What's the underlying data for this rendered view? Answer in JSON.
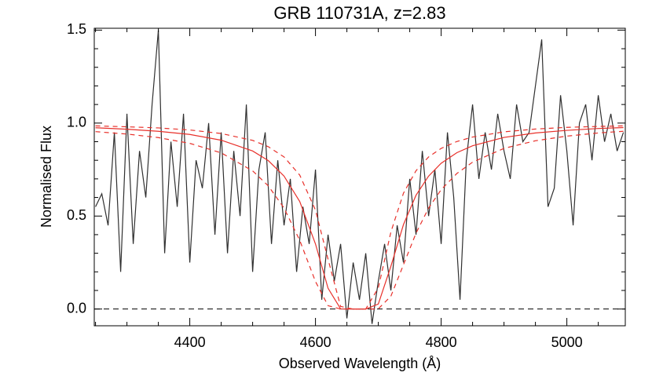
{
  "chart_data": {
    "type": "line",
    "title": "GRB 110731A, z=2.83",
    "x_label": "Observed Wavelength (Å)",
    "y_label": "Normalised Flux",
    "xlim": [
      4248,
      5093
    ],
    "ylim": [
      -0.09,
      1.51
    ],
    "xticks": [
      4400,
      4600,
      4800,
      5000
    ],
    "yticks": [
      {
        "value": 0,
        "label": "0.0"
      },
      {
        "value": 0.5,
        "label": "0.5"
      },
      {
        "value": 1,
        "label": "1.0"
      },
      {
        "value": 1.5,
        "label": "1.5"
      }
    ],
    "xticks_minor": [
      4250,
      4300,
      4350,
      4450,
      4500,
      4550,
      4650,
      4700,
      4750,
      4850,
      4900,
      4950,
      5050
    ],
    "yticks_minor": [
      0.1,
      0.2,
      0.3,
      0.4,
      0.6,
      0.7,
      0.8,
      0.9,
      1.1,
      1.2,
      1.3,
      1.4
    ],
    "reference_line": 0,
    "series": [
      {
        "color": "#303030",
        "style": "solid",
        "x": [
          4250,
          4260,
          4270,
          4280,
          4290,
          4300,
          4310,
          4320,
          4330,
          4340,
          4350,
          4360,
          4370,
          4380,
          4390,
          4400,
          4410,
          4420,
          4430,
          4440,
          4450,
          4460,
          4470,
          4480,
          4490,
          4500,
          4510,
          4520,
          4530,
          4540,
          4550,
          4560,
          4570,
          4580,
          4590,
          4600,
          4610,
          4620,
          4630,
          4640,
          4650,
          4660,
          4670,
          4680,
          4690,
          4700,
          4710,
          4720,
          4730,
          4740,
          4750,
          4760,
          4770,
          4780,
          4790,
          4800,
          4810,
          4820,
          4830,
          4840,
          4850,
          4860,
          4870,
          4880,
          4890,
          4900,
          4910,
          4920,
          4930,
          4940,
          4950,
          4960,
          4970,
          4980,
          4990,
          5000,
          5010,
          5020,
          5030,
          5040,
          5050,
          5060,
          5070,
          5080,
          5090
        ],
        "values": [
          0.55,
          0.62,
          0.45,
          0.95,
          0.2,
          1.05,
          0.35,
          0.85,
          0.6,
          1.1,
          1.5,
          0.3,
          0.9,
          0.55,
          1.05,
          0.25,
          0.8,
          0.65,
          1.0,
          0.4,
          0.95,
          0.3,
          0.85,
          0.5,
          1.1,
          0.2,
          0.75,
          0.95,
          0.35,
          0.8,
          0.45,
          0.7,
          0.2,
          0.55,
          0.35,
          0.75,
          0.05,
          0.4,
          0.15,
          0.35,
          -0.05,
          0.25,
          0.05,
          0.3,
          -0.08,
          0.15,
          0.35,
          0.1,
          0.45,
          0.25,
          0.7,
          0.4,
          0.85,
          0.5,
          0.75,
          0.35,
          0.95,
          0.6,
          0.05,
          0.8,
          1.1,
          0.7,
          0.95,
          0.75,
          1.05,
          0.85,
          0.7,
          1.1,
          0.9,
          0.95,
          1.2,
          1.45,
          0.55,
          0.65,
          1.15,
          0.85,
          0.45,
          1.0,
          1.1,
          0.8,
          1.15,
          0.9,
          1.05,
          0.85,
          0.95
        ]
      },
      {
        "color": "#e8302a",
        "style": "solid",
        "x": [
          4250,
          4300,
          4350,
          4400,
          4450,
          4500,
          4525,
          4550,
          4575,
          4600,
          4620,
          4640,
          4660,
          4680,
          4700,
          4720,
          4740,
          4760,
          4780,
          4800,
          4825,
          4850,
          4900,
          4950,
          5000,
          5050,
          5090
        ],
        "values": [
          0.975,
          0.967,
          0.956,
          0.939,
          0.908,
          0.85,
          0.798,
          0.715,
          0.578,
          0.35,
          0.112,
          0.001,
          0,
          0,
          0.027,
          0.23,
          0.454,
          0.612,
          0.715,
          0.784,
          0.841,
          0.878,
          0.923,
          0.947,
          0.961,
          0.971,
          0.976
        ]
      },
      {
        "color": "#e8302a",
        "style": "dashed",
        "x": [
          4250,
          4300,
          4350,
          4400,
          4450,
          4500,
          4525,
          4550,
          4575,
          4600,
          4620,
          4640,
          4660,
          4680,
          4700,
          4720,
          4740,
          4760,
          4780,
          4800,
          4825,
          4850,
          4900,
          4950,
          5000,
          5050,
          5090
        ],
        "values": [
          0.985,
          0.98,
          0.974,
          0.963,
          0.944,
          0.907,
          0.873,
          0.818,
          0.72,
          0.532,
          0.268,
          0.014,
          0,
          0,
          0.114,
          0.414,
          0.623,
          0.744,
          0.818,
          0.864,
          0.901,
          0.925,
          0.953,
          0.968,
          0.977,
          0.982,
          0.985
        ]
      },
      {
        "color": "#e8302a",
        "style": "dashed",
        "x": [
          4250,
          4300,
          4350,
          4400,
          4450,
          4500,
          4525,
          4550,
          4575,
          4600,
          4620,
          4640,
          4660,
          4680,
          4700,
          4720,
          4740,
          4760,
          4780,
          4800,
          4825,
          4850,
          4900,
          4950,
          5000,
          5050,
          5090
        ],
        "values": [
          0.954,
          0.941,
          0.922,
          0.891,
          0.84,
          0.743,
          0.662,
          0.543,
          0.369,
          0.148,
          0.018,
          0,
          0,
          0,
          0.001,
          0.069,
          0.238,
          0.408,
          0.543,
          0.642,
          0.729,
          0.79,
          0.864,
          0.905,
          0.93,
          0.947,
          0.956
        ]
      }
    ]
  }
}
